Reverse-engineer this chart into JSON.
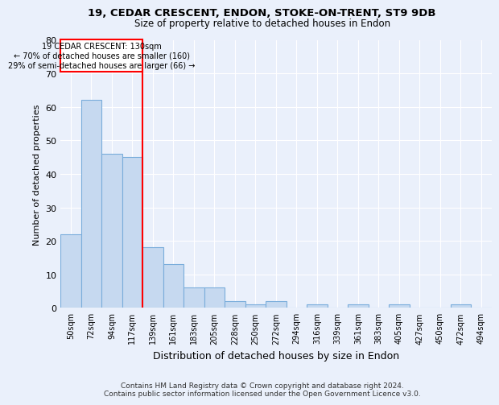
{
  "title": "19, CEDAR CRESCENT, ENDON, STOKE-ON-TRENT, ST9 9DB",
  "subtitle": "Size of property relative to detached houses in Endon",
  "xlabel": "Distribution of detached houses by size in Endon",
  "ylabel": "Number of detached properties",
  "bar_color": "#c6d9f0",
  "bar_edge_color": "#7aaddb",
  "bins": [
    "50sqm",
    "72sqm",
    "94sqm",
    "117sqm",
    "139sqm",
    "161sqm",
    "183sqm",
    "205sqm",
    "228sqm",
    "250sqm",
    "272sqm",
    "294sqm",
    "316sqm",
    "339sqm",
    "361sqm",
    "383sqm",
    "405sqm",
    "427sqm",
    "450sqm",
    "472sqm",
    "494sqm"
  ],
  "values": [
    22,
    62,
    46,
    45,
    18,
    13,
    6,
    6,
    2,
    1,
    2,
    0,
    1,
    0,
    1,
    0,
    1,
    0,
    0,
    1,
    0
  ],
  "vline_bin_index": 4,
  "annotation_line1": "19 CEDAR CRESCENT: 130sqm",
  "annotation_line2": "← 70% of detached houses are smaller (160)",
  "annotation_line3": "29% of semi-detached houses are larger (66) →",
  "ylim": [
    0,
    80
  ],
  "yticks": [
    0,
    10,
    20,
    30,
    40,
    50,
    60,
    70,
    80
  ],
  "footer": "Contains HM Land Registry data © Crown copyright and database right 2024.\nContains public sector information licensed under the Open Government Licence v3.0.",
  "bg_color": "#eaf0fb",
  "plot_bg_color": "#eaf0fb"
}
